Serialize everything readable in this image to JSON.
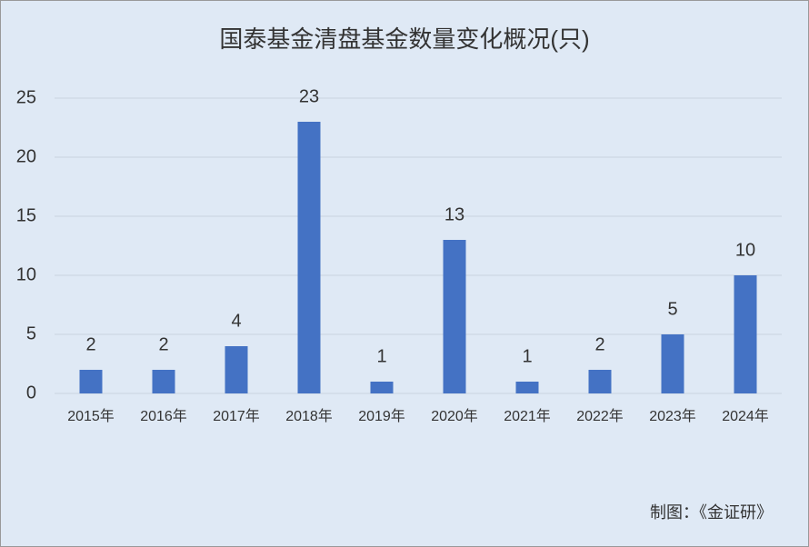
{
  "chart_data": {
    "type": "bar",
    "title": "国泰基金清盘基金数量变化概况(只)",
    "categories": [
      "2015年",
      "2016年",
      "2017年",
      "2018年",
      "2019年",
      "2020年",
      "2021年",
      "2022年",
      "2023年",
      "2024年"
    ],
    "values": [
      2,
      2,
      4,
      23,
      1,
      13,
      1,
      2,
      5,
      10
    ],
    "color": "#4472c4",
    "ylim": [
      0,
      25
    ],
    "yticks": [
      0,
      5,
      10,
      15,
      20,
      25
    ],
    "grid": true,
    "annotation": "制图：《金证研》"
  }
}
